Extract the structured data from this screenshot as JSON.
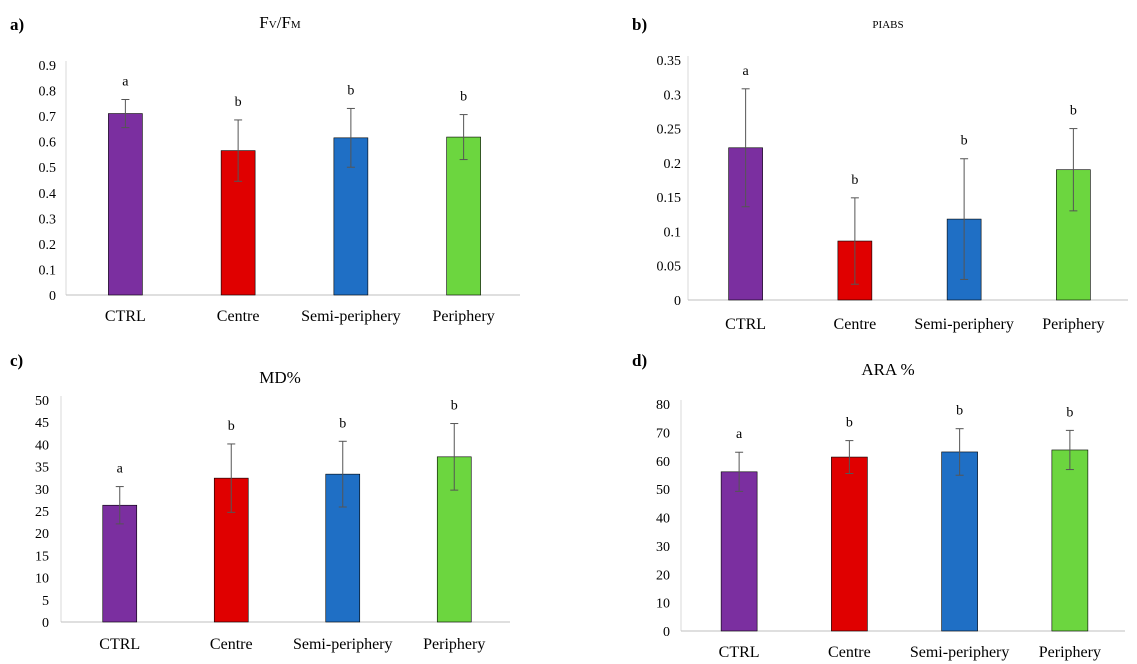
{
  "colors": {
    "CTRL": "#7B2FA0",
    "Centre": "#E00000",
    "Semi-periphery": "#1F6FC5",
    "Periphery": "#6CD63F"
  },
  "chart_data": [
    {
      "type": "bar",
      "panel_label": "a)",
      "title_main": "Fv/Fm",
      "title_parts": [
        "F",
        "V",
        "/F",
        "M"
      ],
      "categories": [
        "CTRL",
        "Centre",
        "Semi-periphery",
        "Periphery"
      ],
      "values": [
        0.71,
        0.565,
        0.615,
        0.618
      ],
      "errors": [
        0.055,
        0.12,
        0.115,
        0.088
      ],
      "significance": [
        "a",
        "b",
        "b",
        "b"
      ],
      "yticks": [
        "0",
        "0.1",
        "0.2",
        "0.3",
        "0.4",
        "0.5",
        "0.6",
        "0.7",
        "0.8",
        "0.9"
      ],
      "ylim": [
        0,
        0.9
      ]
    },
    {
      "type": "bar",
      "panel_label": "b)",
      "title_main": "PIABS",
      "title_parts": [
        "PI",
        "ABS"
      ],
      "categories": [
        "CTRL",
        "Centre",
        "Semi-periphery",
        "Periphery"
      ],
      "values": [
        0.222,
        0.086,
        0.118,
        0.19
      ],
      "errors": [
        0.086,
        0.063,
        0.088,
        0.06
      ],
      "significance": [
        "a",
        "b",
        "b",
        "b"
      ],
      "yticks": [
        "0",
        "0.05",
        "0.1",
        "0.15",
        "0.2",
        "0.25",
        "0.3",
        "0.35"
      ],
      "ylim": [
        0,
        0.35
      ]
    },
    {
      "type": "bar",
      "panel_label": "c)",
      "title_main": "MD%",
      "categories": [
        "CTRL",
        "Centre",
        "Semi-periphery",
        "Periphery"
      ],
      "values": [
        26.3,
        32.4,
        33.3,
        37.2
      ],
      "errors": [
        4.2,
        7.7,
        7.4,
        7.5
      ],
      "significance": [
        "a",
        "b",
        "b",
        "b"
      ],
      "yticks": [
        "0",
        "5",
        "10",
        "15",
        "20",
        "25",
        "30",
        "35",
        "40",
        "45",
        "50"
      ],
      "ylim": [
        0,
        50
      ]
    },
    {
      "type": "bar",
      "panel_label": "d)",
      "title_main": "ARA %",
      "categories": [
        "CTRL",
        "Centre",
        "Semi-periphery",
        "Periphery"
      ],
      "values": [
        56.1,
        61.3,
        63.1,
        63.8
      ],
      "errors": [
        6.9,
        5.8,
        8.2,
        6.9
      ],
      "significance": [
        "a",
        "b",
        "b",
        "b"
      ],
      "yticks": [
        "0",
        "10",
        "20",
        "30",
        "40",
        "50",
        "60",
        "70",
        "80"
      ],
      "ylim": [
        0,
        80
      ]
    }
  ]
}
